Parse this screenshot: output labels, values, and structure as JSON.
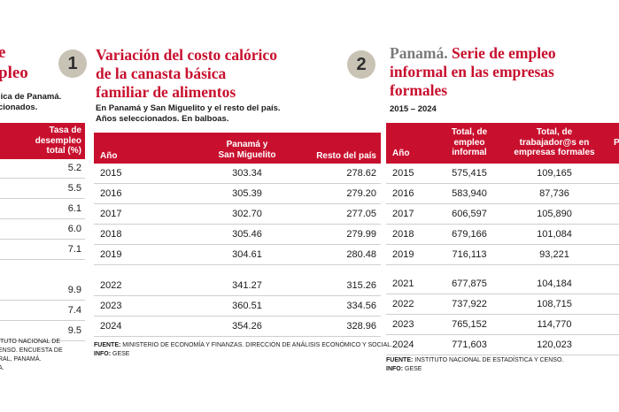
{
  "left_panel": {
    "title_lines": [
      "e",
      "pleo"
    ],
    "subtitle_lines": [
      "lica de Panamá.",
      "cionados."
    ],
    "header": [
      "Tasa de",
      "desempleo",
      "total (%)"
    ],
    "values": [
      "5.2",
      "5.5",
      "6.1",
      "6.0",
      "7.1",
      "",
      "9.9",
      "7.4",
      "9.5"
    ],
    "source_lines": [
      "ITUTO NACIONAL DE",
      "ENSO. ENCUESTA DE",
      "RAL, PANAMÁ.",
      "A."
    ]
  },
  "panel1": {
    "badge": "1",
    "title_lines": [
      "Variación del costo calórico",
      "de la canasta básica",
      "familiar de alimentos"
    ],
    "subtitle_lines": [
      "En Panamá y San Miguelito y el resto del país.",
      "Años seleccionados. En balboas."
    ],
    "columns": [
      "Año",
      "Panamá y San Miguelito",
      "Resto del país"
    ],
    "col1_lines": [
      "Panamá y",
      "San Miguelito"
    ],
    "rows": [
      [
        "2015",
        "303.34",
        "278.62"
      ],
      [
        "2016",
        "305.39",
        "279.20"
      ],
      [
        "2017",
        "302.70",
        "277.05"
      ],
      [
        "2018",
        "305.46",
        "279.99"
      ],
      [
        "2019",
        "304.61",
        "280.48"
      ],
      [
        "",
        "",
        ""
      ],
      [
        "2022",
        "341.27",
        "315.26"
      ],
      [
        "2023",
        "360.51",
        "334.56"
      ],
      [
        "2024",
        "354.26",
        "328.96"
      ]
    ],
    "source_label": "FUENTE:",
    "source_text": "MINISTERIO DE ECONOMÍA Y FINANZAS. DIRECCIÓN DE ANÁLISIS ECONÓMICO Y SOCIAL.",
    "info_label": "INFO:",
    "info_text": "GESE"
  },
  "panel2": {
    "badge": "2",
    "title_prefix": "Panamá.",
    "title_lines": [
      "Serie de empleo",
      "informal en las empresas",
      "formales"
    ],
    "subtitle": "2015 – 2024",
    "col_year": "Año",
    "col1_lines": [
      "Total, de",
      "empleo",
      "informal"
    ],
    "col2_lines": [
      "Total, de",
      "trabajador@s en",
      "empresas formales"
    ],
    "col3_fragment": "P",
    "rows": [
      [
        "2015",
        "575,415",
        "109,165"
      ],
      [
        "2016",
        "583,940",
        "87,736"
      ],
      [
        "2017",
        "606,597",
        "105,890"
      ],
      [
        "2018",
        "679,166",
        "101,084"
      ],
      [
        "2019",
        "716,113",
        "93,221"
      ],
      [
        "",
        "",
        ""
      ],
      [
        "2021",
        "677,875",
        "104,184"
      ],
      [
        "2022",
        "737,922",
        "108,715"
      ],
      [
        "2023",
        "765,152",
        "114,770"
      ],
      [
        "2024",
        "771,603",
        "120,023"
      ]
    ],
    "source_label": "FUENTE:",
    "source_text": "INSTITUTO NACIONAL DE ESTADÍSTICA Y CENSO.",
    "info_label": "INFO:",
    "info_text": "GESE"
  },
  "colors": {
    "accent": "#c8102e",
    "badge": "#c9c3b5",
    "rule": "#cfcfcf"
  }
}
